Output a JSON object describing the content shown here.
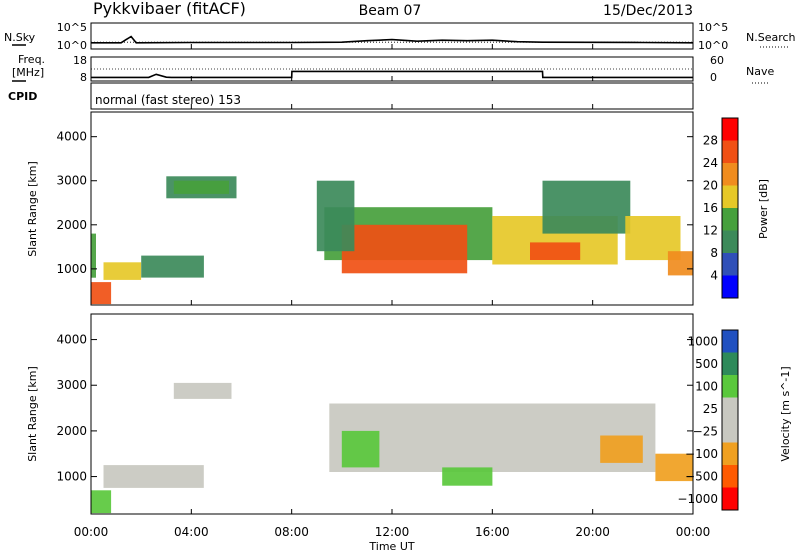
{
  "header": {
    "station": "Pykkvibaer (fitACF)",
    "beam": "Beam 07",
    "date": "15/Dec/2013"
  },
  "strip_labels": {
    "nsky": "N.Sky",
    "nsearch": "N.Search",
    "freq_top": "Freq.",
    "freq_unit": "[MHz]",
    "nave": "Nave",
    "cpid": "CPID",
    "cpid_value": "normal (fast stereo) 153",
    "noise_ticks": [
      "10^5",
      "10^0"
    ],
    "freq_ticks": [
      "18",
      "8"
    ],
    "nave_ticks": [
      "60",
      "0"
    ]
  },
  "colors": {
    "power_scale": [
      "#0000ff",
      "#3050b8",
      "#3c8a5a",
      "#46a03c",
      "#e6c828",
      "#f08c1e",
      "#f05014",
      "#ff0000"
    ],
    "velocity_scale": [
      "#ff0000",
      "#ff5a00",
      "#f0a020",
      "#c8c8c0",
      "#c8c8c0",
      "#5ac83c",
      "#2e8a5a",
      "#2050c0"
    ],
    "ground_scatter": "#c8c8c0"
  },
  "chart_data": [
    {
      "type": "line",
      "panel": "noise",
      "x": [
        0,
        1.2,
        1.4,
        1.6,
        1.8,
        4,
        8,
        10,
        11,
        12,
        13,
        14,
        15,
        16,
        17,
        18,
        22,
        24
      ],
      "series": [
        {
          "name": "N.Sky",
          "values": [
            1.2,
            1.2,
            1.8,
            2.4,
            1.2,
            1.25,
            1.25,
            1.3,
            1.6,
            1.8,
            1.5,
            1.7,
            1.6,
            1.7,
            1.4,
            1.3,
            1.25,
            1.2
          ]
        },
        {
          "name": "N.Search",
          "values": [
            1.3,
            1.3,
            1.3,
            1.3,
            1.3,
            1.3,
            1.3,
            1.3,
            1.3,
            1.3,
            1.3,
            1.3,
            1.3,
            1.3,
            1.3,
            1.3,
            1.3,
            1.3
          ]
        }
      ],
      "yscale": "log",
      "ylim": [
        0,
        5
      ],
      "xlim": [
        0,
        24
      ]
    },
    {
      "type": "line",
      "panel": "frequency",
      "x": [
        0,
        2.3,
        2.6,
        3.0,
        3.2,
        8,
        8.01,
        18,
        18.01,
        24
      ],
      "series": [
        {
          "name": "Freq.",
          "values": [
            9.5,
            9.5,
            10.8,
            9.6,
            9.5,
            9.5,
            12.0,
            12.0,
            9.5,
            9.5
          ]
        },
        {
          "name": "Nave",
          "values": [
            30,
            30,
            30,
            30,
            30,
            30,
            30,
            30,
            30,
            30
          ]
        }
      ],
      "ylim": [
        8,
        18
      ],
      "y2lim": [
        0,
        60
      ],
      "xlim": [
        0,
        24
      ]
    },
    {
      "type": "heatmap",
      "panel": "power",
      "ylabel": "Slant Range [km]",
      "colorbar_label": "Power [dB]",
      "colorbar_ticks": [
        4,
        8,
        12,
        16,
        20,
        24,
        28
      ],
      "colorbar_range": [
        0,
        32
      ],
      "xlim": [
        0,
        24
      ],
      "ylim": [
        180,
        4560
      ],
      "yticks": [
        1000,
        2000,
        3000,
        4000
      ],
      "regions": [
        {
          "t0": 0.0,
          "t1": 0.8,
          "r0": 200,
          "r1": 700,
          "value": 24
        },
        {
          "t0": 0.0,
          "t1": 0.2,
          "r0": 800,
          "r1": 1800,
          "value": 14
        },
        {
          "t0": 0.5,
          "t1": 2.0,
          "r0": 750,
          "r1": 1150,
          "value": 16
        },
        {
          "t0": 2.0,
          "t1": 4.5,
          "r0": 800,
          "r1": 1300,
          "value": 10
        },
        {
          "t0": 3.0,
          "t1": 5.8,
          "r0": 2600,
          "r1": 3100,
          "value": 8
        },
        {
          "t0": 3.3,
          "t1": 5.5,
          "r0": 2700,
          "r1": 3000,
          "value": 14
        },
        {
          "t0": 9.3,
          "t1": 16.0,
          "r0": 1200,
          "r1": 2400,
          "value": 14
        },
        {
          "t0": 10.0,
          "t1": 15.0,
          "r0": 900,
          "r1": 2000,
          "value": 24
        },
        {
          "t0": 9.0,
          "t1": 10.5,
          "r0": 1400,
          "r1": 3000,
          "value": 8
        },
        {
          "t0": 16.0,
          "t1": 21.0,
          "r0": 1100,
          "r1": 2200,
          "value": 18
        },
        {
          "t0": 17.5,
          "t1": 19.5,
          "r0": 1200,
          "r1": 1600,
          "value": 26
        },
        {
          "t0": 18.0,
          "t1": 21.5,
          "r0": 1800,
          "r1": 3000,
          "value": 10
        },
        {
          "t0": 21.3,
          "t1": 23.5,
          "r0": 1200,
          "r1": 2200,
          "value": 16
        },
        {
          "t0": 23.0,
          "t1": 24.0,
          "r0": 850,
          "r1": 1400,
          "value": 20
        }
      ]
    },
    {
      "type": "heatmap",
      "panel": "velocity",
      "ylabel": "Slant Range [km]",
      "colorbar_label": "Velocity [m s^-1]",
      "colorbar_ticks": [
        "1000",
        "500",
        "100",
        "25",
        "−25",
        "−100",
        "−500",
        "−1000"
      ],
      "xlim": [
        0,
        24
      ],
      "ylim": [
        180,
        4560
      ],
      "yticks": [
        1000,
        2000,
        3000,
        4000
      ],
      "xticks": [
        "00:00",
        "04:00",
        "08:00",
        "12:00",
        "16:00",
        "20:00",
        "00:00"
      ],
      "xlabel": "Time UT",
      "regions": [
        {
          "t0": 0.0,
          "t1": 0.8,
          "r0": 200,
          "r1": 700,
          "value": 300
        },
        {
          "t0": 0.5,
          "t1": 4.5,
          "r0": 750,
          "r1": 1250,
          "value": 0
        },
        {
          "t0": 3.3,
          "t1": 5.6,
          "r0": 2700,
          "r1": 3050,
          "value": 0
        },
        {
          "t0": 9.5,
          "t1": 22.5,
          "r0": 1100,
          "r1": 2600,
          "value": 0
        },
        {
          "t0": 10.0,
          "t1": 11.5,
          "r0": 1200,
          "r1": 2000,
          "value": 120
        },
        {
          "t0": 14.0,
          "t1": 16.0,
          "r0": 800,
          "r1": 1200,
          "value": 150
        },
        {
          "t0": 20.3,
          "t1": 22.0,
          "r0": 1300,
          "r1": 1900,
          "value": -300
        },
        {
          "t0": 22.5,
          "t1": 24.0,
          "r0": 900,
          "r1": 1500,
          "value": -150
        }
      ]
    }
  ]
}
